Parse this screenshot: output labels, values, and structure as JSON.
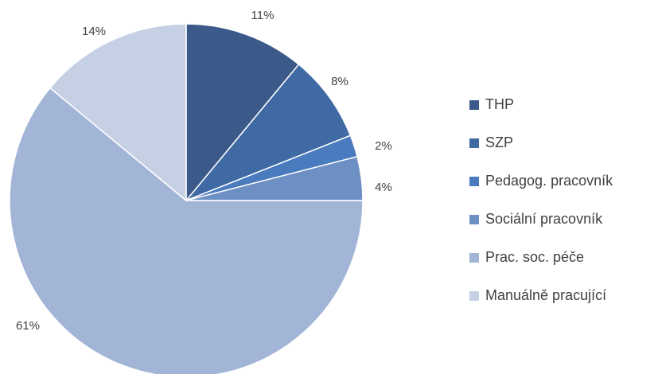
{
  "chart_data": {
    "type": "pie",
    "categories": [
      "THP",
      "SZP",
      "Pedagog. pracovník",
      "Sociální pracovník",
      "Prac. soc. péče",
      "Manuálně pracující"
    ],
    "values": [
      11,
      8,
      2,
      4,
      61,
      14
    ],
    "value_labels": [
      "11%",
      "8%",
      "2%",
      "4%",
      "61%",
      "14%"
    ],
    "colors": [
      "#3b5a8a",
      "#3f6aa3",
      "#4a7bbf",
      "#6e8fc4",
      "#a3b5d6",
      "#c5d0e4"
    ],
    "legend": "right"
  }
}
